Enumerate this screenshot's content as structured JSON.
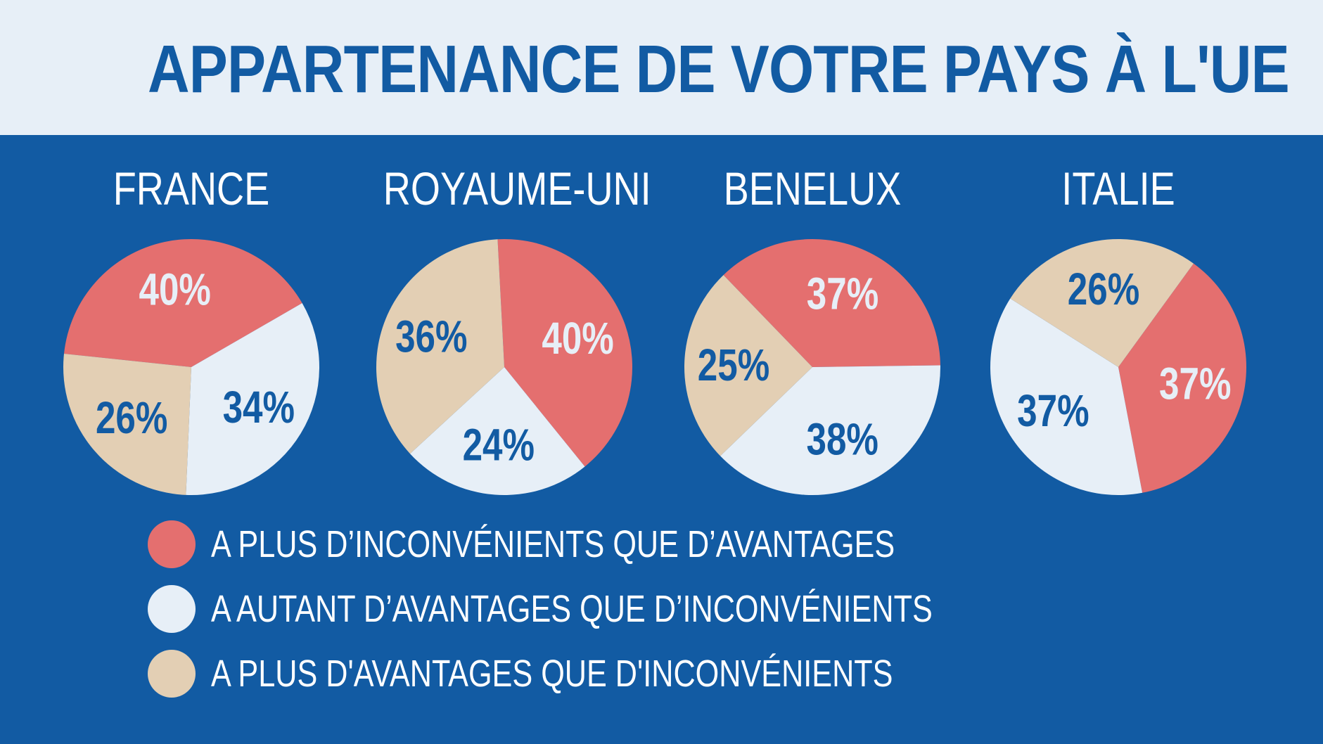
{
  "header": {
    "title": "APPARTENANCE DE VOTRE PAYS À L'UE"
  },
  "colors": {
    "background": "#125ba3",
    "header_bg": "#e7eff7",
    "inconvenients": "#e46f6f",
    "autant": "#e7eff7",
    "avantages": "#e3cfb4",
    "label_light": "#e7eff7",
    "label_dark": "#125ba3"
  },
  "chart_data": {
    "type": "pie",
    "categories": [
      "A PLUS D’INCONVÉNIENTS QUE D’AVANTAGES",
      "A AUTANT D’AVANTAGES QUE D’INCONVÉNIENTS",
      "A PLUS D'AVANTAGES QUE D'INCONVÉNIENTS"
    ],
    "charts": [
      {
        "title": "FRANCE",
        "values": [
          40,
          34,
          26
        ],
        "labels": [
          "40%",
          "34%",
          "26%"
        ]
      },
      {
        "title": "ROYAUME-UNI",
        "values": [
          40,
          24,
          36
        ],
        "labels": [
          "40%",
          "24%",
          "36%"
        ]
      },
      {
        "title": "BENELUX",
        "values": [
          37,
          38,
          25
        ],
        "labels": [
          "37%",
          "38%",
          "25%"
        ]
      },
      {
        "title": "ITALIE",
        "values": [
          37,
          37,
          26
        ],
        "labels": [
          "37%",
          "37%",
          "26%"
        ]
      }
    ],
    "legend_position": "bottom-left"
  },
  "legend": {
    "items": [
      {
        "label": "A PLUS D’INCONVÉNIENTS QUE D’AVANTAGES"
      },
      {
        "label": "A AUTANT D’AVANTAGES QUE D’INCONVÉNIENTS"
      },
      {
        "label": "A PLUS D'AVANTAGES QUE D'INCONVÉNIENTS"
      }
    ]
  }
}
